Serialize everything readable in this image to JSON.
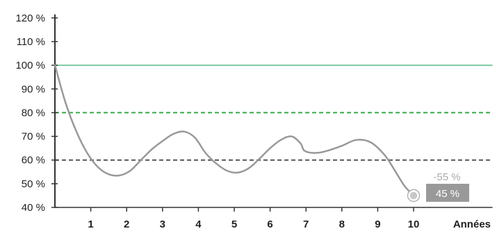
{
  "chart_data": {
    "type": "line",
    "x_unit_label": "Années",
    "x_ticks": [
      1,
      2,
      3,
      4,
      5,
      6,
      7,
      8,
      9,
      10
    ],
    "y_ticks": [
      40,
      50,
      60,
      70,
      80,
      90,
      100,
      110,
      120
    ],
    "y_tick_labels": [
      "40 %",
      "50 %",
      "60 %",
      "70 %",
      "80 %",
      "90 %",
      "100 %",
      "110 %",
      "120 %"
    ],
    "ylim": [
      40,
      120
    ],
    "xlim": [
      0,
      12.2
    ],
    "grid": false,
    "series": [
      {
        "color": "#999999",
        "points": [
          [
            0,
            100
          ],
          [
            0.3,
            84
          ],
          [
            0.6,
            72
          ],
          [
            0.9,
            63
          ],
          [
            1.2,
            57
          ],
          [
            1.5,
            54
          ],
          [
            1.8,
            53.5
          ],
          [
            2.1,
            55.5
          ],
          [
            2.4,
            60
          ],
          [
            2.7,
            64.5
          ],
          [
            3.0,
            68
          ],
          [
            3.3,
            71
          ],
          [
            3.6,
            72
          ],
          [
            3.9,
            69.5
          ],
          [
            4.2,
            63
          ],
          [
            4.5,
            58.5
          ],
          [
            4.8,
            55.5
          ],
          [
            5.1,
            54.7
          ],
          [
            5.4,
            56.5
          ],
          [
            5.7,
            60.5
          ],
          [
            6.0,
            65
          ],
          [
            6.3,
            68.5
          ],
          [
            6.6,
            70
          ],
          [
            6.85,
            67
          ],
          [
            6.95,
            64
          ],
          [
            7.2,
            63
          ],
          [
            7.5,
            63.5
          ],
          [
            8.0,
            66
          ],
          [
            8.4,
            68.5
          ],
          [
            8.8,
            67.5
          ],
          [
            9.2,
            62
          ],
          [
            9.5,
            55
          ],
          [
            9.75,
            49
          ],
          [
            10,
            45
          ]
        ]
      }
    ],
    "reference_lines": [
      {
        "value": 100,
        "color": "#7cc9a0",
        "style": "solid",
        "label": "100 %"
      },
      {
        "value": 80,
        "color": "#3aa64a",
        "style": "dashed",
        "label": "80 %"
      },
      {
        "value": 60,
        "color": "#555555",
        "style": "dashed",
        "label": "60 %"
      }
    ],
    "annotations": {
      "change_label": "-55 %",
      "value_label": "45 %",
      "value_box_color": "#999999",
      "at": [
        10,
        45
      ]
    }
  }
}
